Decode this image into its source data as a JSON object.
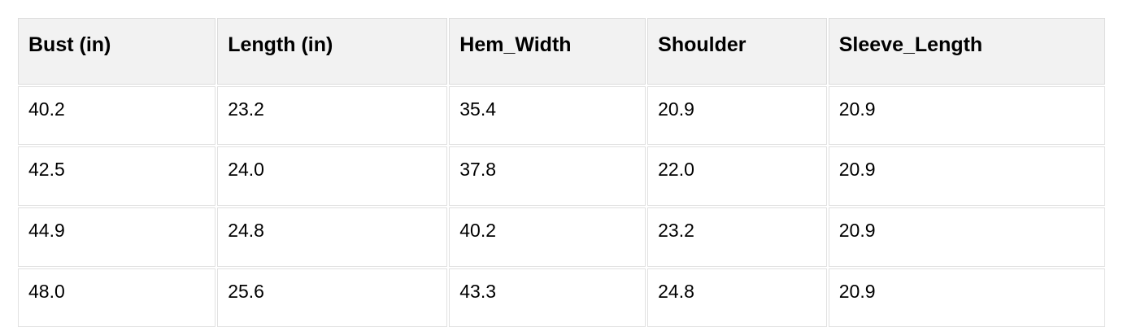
{
  "colors": {
    "page_bg": "#ffffff",
    "header_bg": "#f2f2f2",
    "header_border": "#dcdcdc",
    "cell_border": "#e1e1e1",
    "text": "#000000"
  },
  "table": {
    "headers": [
      "Bust (in)",
      "Length (in)",
      "Hem_Width",
      "Shoulder",
      "Sleeve_Length"
    ],
    "rows": [
      [
        "40.2",
        "23.2",
        "35.4",
        "20.9",
        "20.9"
      ],
      [
        "42.5",
        "24.0",
        "37.8",
        "22.0",
        "20.9"
      ],
      [
        "44.9",
        "24.8",
        "40.2",
        "23.2",
        "20.9"
      ],
      [
        "48.0",
        "25.6",
        "43.3",
        "24.8",
        "20.9"
      ]
    ]
  },
  "chart_data": {
    "type": "table",
    "title": "",
    "columns": [
      "Bust (in)",
      "Length (in)",
      "Hem_Width",
      "Shoulder",
      "Sleeve_Length"
    ],
    "rows": [
      [
        40.2,
        23.2,
        35.4,
        20.9,
        20.9
      ],
      [
        42.5,
        24.0,
        37.8,
        22.0,
        20.9
      ],
      [
        44.9,
        24.8,
        40.2,
        23.2,
        20.9
      ],
      [
        48.0,
        25.6,
        43.3,
        24.8,
        20.9
      ]
    ]
  }
}
